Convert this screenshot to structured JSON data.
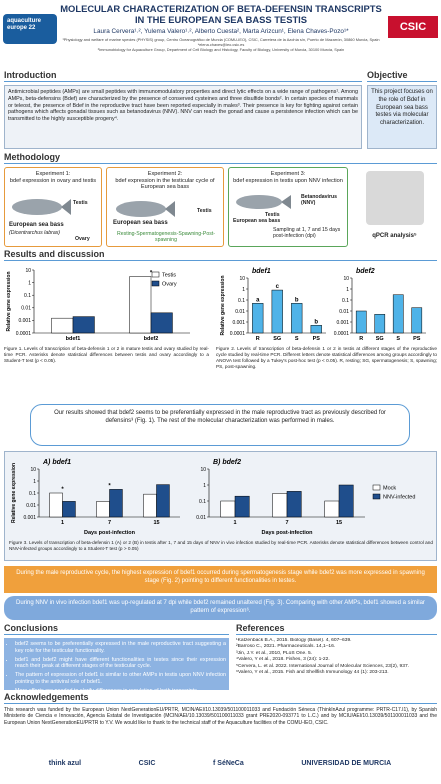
{
  "header": {
    "title": "MOLECULAR CHARACTERIZATION OF BETA-DEFENSIN TRANSCRIPTS IN THE EUROPEAN SEA BASS TESTIS",
    "authors": "Laura Cervera¹˒², Yulema Valero¹˒², Alberto Cuesta², Marta Arizcun¹, Elena Chaves-Pozo¹*",
    "affiliations": [
      "¹Physiology and welfare of marine species (PHYSIS) group, Centro Oceanográfico de Murcia (COMU-IEO), CSIC, Carretera de la Azohía s/n, Puerto de Mazarrón, 30860 Murcia, Spain",
      "*elena.chaves@ieo.csic.es",
      "²Immunobiology for Aquaculture Group, Department of Cell Biology and Histology, Faculty of Biology, University of Murcia, 30100 Murcia, Spain"
    ],
    "logo_left": "aquaculture europe 22",
    "logo_right": "CSIC"
  },
  "introduction": {
    "heading": "Introduction",
    "text": "Antimicrobial peptides (AMPs) are small peptides with immunomodulatory properties and direct lytic effects on a wide range of pathogens¹. Among AMPs, beta-defensins (Bdef) are characterized by the presence of conserved cysteines and three disulfide bonds². In certain species of mammals or teleost, the presence of Bdef in the reproductive tract have been reported especially in males³. Their presence is key for fighting against certain pathogens which affects gonadal tissues such as betanodavirus (NNV). NNV can reach the gonad and cause a persistence infection which can be transmitted to the highly susceptible progeny⁴."
  },
  "objective": {
    "heading": "Objective",
    "text": "This project focuses on the role of Bdef in European sea bass testes via molecular characterization."
  },
  "methodology": {
    "heading": "Methodology",
    "experiments": [
      {
        "title": "Experiment 1:",
        "description": "bdef expression in ovary and testis",
        "labels": [
          "Testis",
          "European sea bass",
          "(Dicentrarchus labrax)",
          "Ovary"
        ]
      },
      {
        "title": "Experiment 2:",
        "description": "bdef expression in the testicular cycle of European sea bass",
        "labels": [
          "Testis",
          "European sea bass",
          "Resting-Spermatogenesis-Spawning-Post-spawning"
        ]
      },
      {
        "title": "Experiment 3:",
        "description": "bdef expression in testis upon NNV infection",
        "labels": [
          "Betanodavirus (NNV)",
          "Testis",
          "European sea bass",
          "Sampling at 1, 7 and 15 days post-infection (dpi)"
        ]
      }
    ],
    "qpcr": "qPCR analysis⁵"
  },
  "results": {
    "heading": "Results and discussion",
    "fig1_caption": "Figure 1. Levels of transcription of beta-defensin 1 or 2 in mature testis and ovary studied by real-time PCR. Asterisks denote statistical differences between testis and ovary accordingly to a Student-T test (p < 0.05).",
    "fig2_caption": "Figure 2. Levels of transcription of beta-defensin 1 or 2 in testis at different stages of the reproductive cycle studied by real-time PCR. Different letters denote statistical differences among groups accordingly to ANOVA test followed by a Tukey's post-hoc test (p < 0.05). R, resting; SG, spermatogenesis; S, spawning; PS, post-spawning.",
    "summary": "Our results showed that bdef2 seems to be preferentially expressed in the male reproductive tract as previously described for defensins³ (Fig. 1). The rest of the molecular characterization was performed in males.",
    "fig3_caption": "Figure 3. Levels of transcription of beta-defensin 1 (A) or 2 (B) in testis after 1, 7 and 15 days of NNV in vivo infection studied by real-time PCR. Asterisks denote statistical differences between control and NNV-infected groups accordingly to a Student-T test (p > 0.05)",
    "findings": [
      "During the male reproductive cycle, the highest expression of bdef1 occurred during spermatogenesis stage while bdef2 was more expressed in spawning stage (Fig. 2) pointing to different functionalities in testes.",
      "During NNV in vivo infection bdef1 was up-regulated at 7 dpi while bdef2 remained unaltered (Fig. 3). Comparing with other AMPs, bdef1 showed a similar pattern of expression⁶."
    ]
  },
  "conclusions": {
    "heading": "Conclusions",
    "items": [
      "bdef2 seems to be preferentially expressed in the male reproductive tract suggesting a key role for the testicular functionality.",
      "bdef1 and bdef2 might have different functionalities in testes since their expression reach their peak at different stages of the testicular cycle.",
      "The pattern of expression of bdef1 is similar to other AMPs in testis upon NNV infection pointing to the antiviral role of bdef1.",
      "More efforts are needed to clarify differences in regulation of both transcripts."
    ]
  },
  "references": {
    "heading": "References",
    "items": [
      "¹Katzenback B.A., 2015. Biology (Basel). 4, 607–639.",
      "²Barroso C., 2021. Pharmaceuticals. 14,1–16.",
      "³Jin, J.Y. et al., 2010, PLoS One. 5.",
      "⁴Valero, Y et al., 2018. Fishes, 3 (24): 1-22.",
      "⁵Cervera, L. et al. 2022. International Journal of Molecular Sciences, 23(2), 937.",
      "⁶Valero, Y et al., 2015. Fish and Shellfish Immunology 44 (1): 203-213."
    ]
  },
  "acknowledgements": {
    "heading": "Acknowledgements",
    "text": "This research was funded by the European Union NextGenerationEU/PRTR, MCIN/AEI/10.13039/501100011033 and Fundación Séneca (ThinkInAzul programme: PRTR-C17.I1), by Spanish Ministerio de Ciencia e Innovación, Agencia Estatal de Investigación (MCIN/AEI/10.13039/501100011033 grant PRE2020-093771 to L.C.) and by MCIU/AEI/10.13039/501100011033 and the European Union NextGenerationEU/PRTR to Y.V. We would like to thank to the technical staff of the Aquaculture facilities of the COMU-IEO, CSIC."
  },
  "footer_logos": [
    "think azul",
    "CSIC",
    "f SéNeCa",
    "UNIVERSIDAD DE MURCIA"
  ],
  "chart_data": [
    {
      "type": "bar",
      "log": true,
      "ylabel": "Relative gene expression",
      "categories": [
        "bdef1",
        "bdef2"
      ],
      "series": [
        {
          "name": "Testis",
          "color": "#ffffff",
          "values": [
            0.0015,
            3
          ]
        },
        {
          "name": "Ovary",
          "color": "#1f4e8c",
          "values": [
            0.002,
            0.004
          ]
        }
      ],
      "ylim": [
        0.0001,
        10
      ],
      "yticks": [
        0.0001,
        0.001,
        0.01,
        0.1,
        1,
        10
      ],
      "annotations": [
        null,
        "*"
      ],
      "legend": "top-right"
    },
    {
      "type": "bar",
      "log": true,
      "title": "bdef1",
      "ylabel": "Relative gene expression",
      "categories": [
        "R",
        "SG",
        "S",
        "PS"
      ],
      "series": [
        {
          "name": "bdef1",
          "color": "#4fb3e8",
          "values": [
            0.05,
            0.8,
            0.05,
            0.0005
          ]
        }
      ],
      "ylim": [
        0.0001,
        10
      ],
      "yticks": [
        0.0001,
        0.001,
        0.01,
        0.1,
        1,
        10
      ],
      "annotations": [
        "a",
        "c",
        "b",
        "b"
      ]
    },
    {
      "type": "bar",
      "log": true,
      "title": "bdef2",
      "categories": [
        "R",
        "SG",
        "S",
        "PS"
      ],
      "series": [
        {
          "name": "bdef2",
          "color": "#4fb3e8",
          "values": [
            0.01,
            0.005,
            0.3,
            0.02
          ]
        }
      ],
      "ylim": [
        0.0001,
        10
      ],
      "yticks": [
        0.0001,
        0.001,
        0.01,
        0.1,
        1,
        10
      ]
    },
    {
      "type": "bar",
      "log": true,
      "title": "A) bdef1",
      "ylabel": "Relative gene expression",
      "xlabel": "Days post-infection",
      "categories": [
        "1",
        "7",
        "15"
      ],
      "series": [
        {
          "name": "Mock",
          "color": "#ffffff",
          "values": [
            0.1,
            0.02,
            0.08
          ]
        },
        {
          "name": "NNV-infected",
          "color": "#1f4e8c",
          "values": [
            0.02,
            0.2,
            0.5
          ]
        }
      ],
      "ylim": [
        0.001,
        10
      ],
      "yticks": [
        0.001,
        0.01,
        0.1,
        1,
        10
      ],
      "annotations": [
        "*",
        "*",
        null
      ]
    },
    {
      "type": "bar",
      "log": true,
      "title": "B) bdef2",
      "xlabel": "Days post-infection",
      "categories": [
        "1",
        "7",
        "15"
      ],
      "series": [
        {
          "name": "Mock",
          "color": "#ffffff",
          "values": [
            0.1,
            0.3,
            0.1
          ]
        },
        {
          "name": "NNV-infected",
          "color": "#1f4e8c",
          "values": [
            0.2,
            0.4,
            1
          ]
        }
      ],
      "ylim": [
        0.01,
        10
      ],
      "yticks": [
        0.01,
        0.1,
        1,
        10
      ],
      "legend": "right"
    }
  ]
}
